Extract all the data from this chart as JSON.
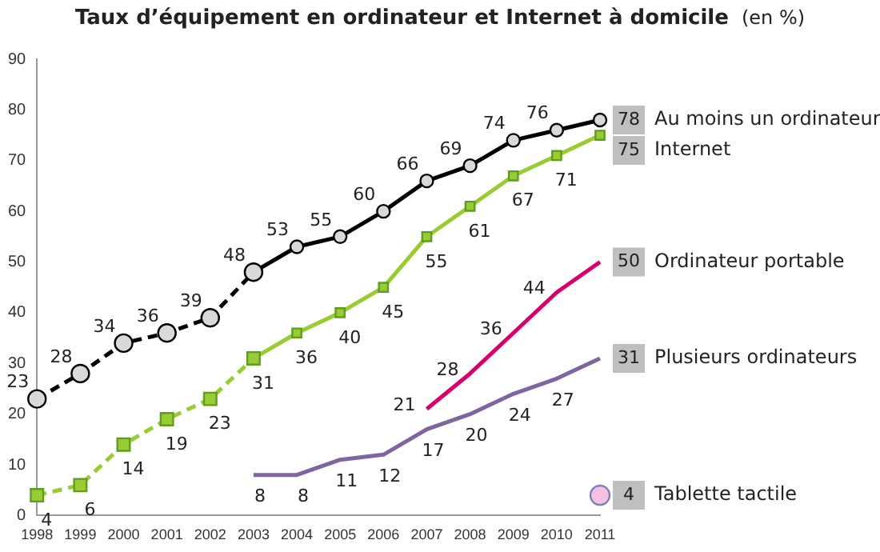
{
  "chart_data": {
    "type": "line",
    "title": "Taux d’équipement en ordinateur et Internet à domicile",
    "subtitle": "(en %)",
    "categories": [
      "1998",
      "1999",
      "2000",
      "2001",
      "2002",
      "2003",
      "2004",
      "2005",
      "2006",
      "2007",
      "2008",
      "2009",
      "2010",
      "2011"
    ],
    "ylim": [
      0,
      90
    ],
    "yticks": [
      0,
      10,
      20,
      30,
      40,
      50,
      60,
      70,
      80,
      90
    ],
    "grid": false,
    "legend": false,
    "series": [
      {
        "color": "#000000",
        "line_style": "dashed",
        "marker": "circle",
        "values": [
          23,
          28,
          34,
          36,
          39,
          48,
          null,
          null,
          null,
          null,
          null,
          null,
          null,
          null
        ],
        "value_labels": [
          "23",
          "28",
          "34",
          "36",
          "39",
          null,
          null,
          null,
          null,
          null,
          null,
          null,
          null,
          null
        ]
      },
      {
        "name": "Au moins un ordinateur",
        "color": "#000000",
        "line_style": "solid",
        "marker": "circle",
        "values": [
          null,
          null,
          null,
          null,
          null,
          48,
          53,
          55,
          60,
          66,
          69,
          74,
          76,
          78
        ],
        "value_labels": [
          null,
          null,
          null,
          null,
          null,
          "48",
          "53",
          "55",
          "60",
          "66",
          "69",
          "74",
          "76",
          "78"
        ]
      },
      {
        "color": "#99cc33",
        "line_style": "dashed",
        "marker": "square",
        "values": [
          4,
          6,
          14,
          19,
          23,
          31,
          null,
          null,
          null,
          null,
          null,
          null,
          null,
          null
        ],
        "value_labels": [
          "4",
          "6",
          "14",
          "19",
          "23",
          null,
          null,
          null,
          null,
          null,
          null,
          null,
          null,
          null
        ]
      },
      {
        "name": "Internet",
        "color": "#99cc33",
        "line_style": "solid",
        "marker": "square",
        "values": [
          null,
          null,
          null,
          null,
          null,
          31,
          36,
          40,
          45,
          55,
          61,
          67,
          71,
          75
        ],
        "value_labels": [
          null,
          null,
          null,
          null,
          null,
          "31",
          "36",
          "40",
          "45",
          "55",
          "61",
          "67",
          "71",
          "75"
        ]
      },
      {
        "name": "Ordinateur portable",
        "color": "#d6006f",
        "line_style": "solid",
        "marker": "none",
        "values": [
          null,
          null,
          null,
          null,
          null,
          null,
          null,
          null,
          null,
          21,
          28,
          36,
          44,
          50
        ],
        "value_labels": [
          null,
          null,
          null,
          null,
          null,
          null,
          null,
          null,
          null,
          "21",
          "28",
          "36",
          "44",
          "50"
        ]
      },
      {
        "name": "Plusieurs ordinateurs",
        "color": "#8064a2",
        "line_style": "solid",
        "marker": "none",
        "values": [
          null,
          null,
          null,
          null,
          null,
          8,
          8,
          11,
          12,
          17,
          20,
          24,
          27,
          31
        ],
        "value_labels": [
          null,
          null,
          null,
          null,
          null,
          "8",
          "8",
          "11",
          "12",
          "17",
          "20",
          "24",
          "27",
          "31"
        ]
      },
      {
        "name": "Tablette tactile",
        "type": "scatter",
        "color": "#f4c2e0",
        "marker": "circle",
        "values": [
          null,
          null,
          null,
          null,
          null,
          null,
          null,
          null,
          null,
          null,
          null,
          null,
          null,
          4
        ],
        "value_labels": [
          null,
          null,
          null,
          null,
          null,
          null,
          null,
          null,
          null,
          null,
          null,
          null,
          null,
          "4"
        ]
      }
    ]
  }
}
